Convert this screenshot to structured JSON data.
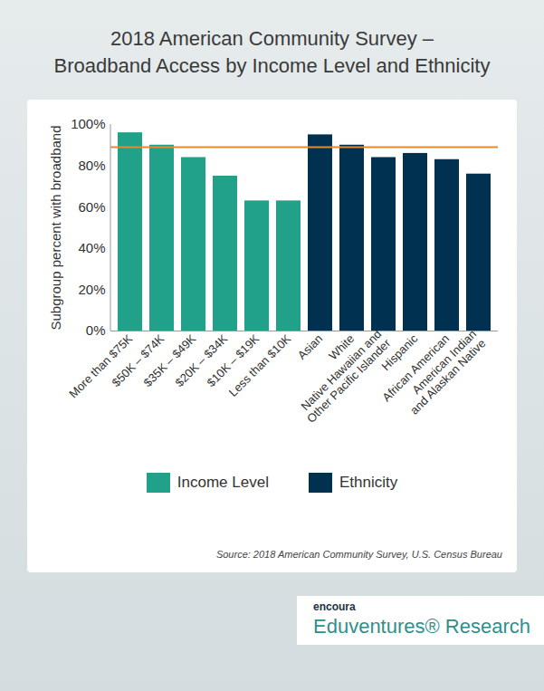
{
  "chart_data": {
    "type": "bar",
    "title": "2018 American Community Survey –\nBroadband Access by Income Level and Ethnicity",
    "y_label": "Subgroup percent with broadband",
    "categories": [
      "More than $75K",
      "$50K – $74K",
      "$35K – $49K",
      "$20K – $34K",
      "$10K – $19K",
      "Less than $10K",
      "Asian",
      "White",
      "Native Hawaiian and\nOther Pacific Islander",
      "Hispanic",
      "African American",
      "American Indian\nand Alaskan Native"
    ],
    "series": [
      {
        "name": "Income Level",
        "color": "#21a08a",
        "values": [
          96,
          90,
          84,
          75,
          63,
          63,
          null,
          null,
          null,
          null,
          null,
          null
        ]
      },
      {
        "name": "Ethnicity",
        "color": "#003150",
        "values": [
          null,
          null,
          null,
          null,
          null,
          null,
          95,
          90,
          84,
          86,
          83,
          76
        ]
      }
    ],
    "reference_line": {
      "value": 89,
      "color": "#e8892b"
    },
    "ylim": [
      0,
      100
    ],
    "yticks": [
      {
        "value": 0,
        "label": "0%"
      },
      {
        "value": 20,
        "label": "20%"
      },
      {
        "value": 40,
        "label": "40%"
      },
      {
        "value": 60,
        "label": "60%"
      },
      {
        "value": 80,
        "label": "80%"
      },
      {
        "value": 100,
        "label": "100%"
      }
    ],
    "grid": false,
    "legend": "bottom",
    "source": "Source: 2018 American Community Survey, U.S. Census Bureau"
  },
  "logo": {
    "brand": "encoura",
    "name": "Eduventures® Research"
  }
}
